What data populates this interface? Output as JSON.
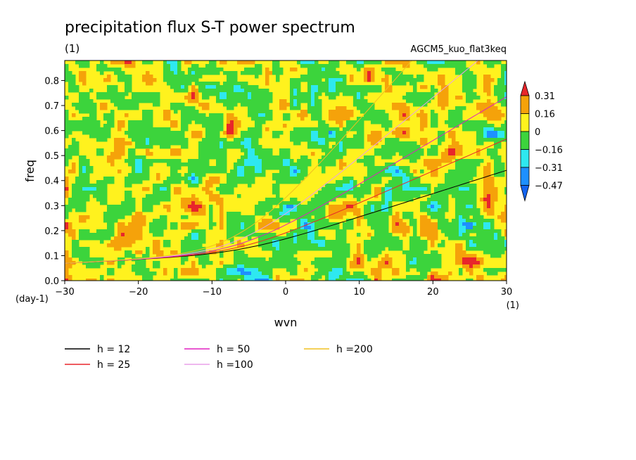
{
  "chart_data": {
    "type": "heatmap",
    "title": "precipitation flux S-T power spectrum",
    "subtitle_left": "(1)",
    "subtitle_right": "AGCM5_kuo_flat3keq",
    "xlabel": "wvn",
    "ylabel": "freq",
    "x_unit": "(1)",
    "y_unit": "(day-1)",
    "xlim": [
      -30,
      30
    ],
    "ylim": [
      0,
      0.88
    ],
    "x_ticks": [
      -30,
      -20,
      -10,
      0,
      10,
      20,
      30
    ],
    "x_tick_labels": [
      "−30",
      "−20",
      "−10",
      "0",
      "10",
      "20",
      "30"
    ],
    "y_ticks": [
      0,
      0.1,
      0.2,
      0.3,
      0.4,
      0.5,
      0.6,
      0.7,
      0.8
    ],
    "y_tick_labels": [
      "0.0",
      "0.1",
      "0.2",
      "0.3",
      "0.4",
      "0.5",
      "0.6",
      "0.7",
      "0.8"
    ],
    "colorbar": {
      "levels": [
        0.31,
        0.16,
        0,
        -0.16,
        -0.31,
        -0.47
      ],
      "labels": [
        "0.31",
        "0.16",
        "0",
        "−0.16",
        "−0.31",
        "−0.47"
      ],
      "colors": [
        "#e8262b",
        "#f5a20a",
        "#fff21e",
        "#3cd43c",
        "#2ee8f0",
        "#1e90ff",
        "#1464f0"
      ]
    },
    "field_note": "noise-like contour field dominated by yellow (0 to 0.16) and green (-0.16 to 0) with scattered orange, cyan and red patches",
    "dispersion_curves": [
      {
        "label": "h = 12",
        "color": "#000000",
        "h": 12
      },
      {
        "label": "h = 25",
        "color": "#e8262b",
        "h": 25
      },
      {
        "label": "h = 50",
        "color": "#e020c0",
        "h": 50
      },
      {
        "label": "h =100",
        "color": "#e8a0e8",
        "h": 100
      },
      {
        "label": "h =200",
        "color": "#f0c020",
        "h": 200
      }
    ]
  }
}
